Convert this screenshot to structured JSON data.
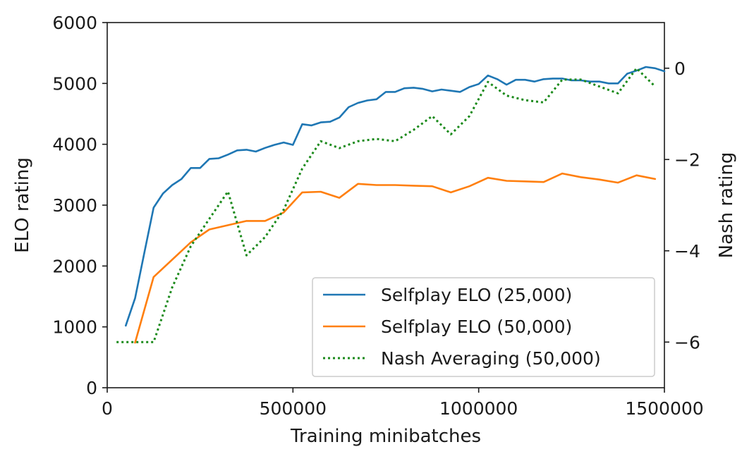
{
  "chart_data": {
    "type": "line",
    "xlabel": "Training minibatches",
    "ylabel": "ELO rating",
    "y2label": "Nash rating",
    "xlim": [
      0,
      1500000
    ],
    "ylim": [
      0,
      6000
    ],
    "y2lim": [
      -7,
      1
    ],
    "x_ticks": [
      0,
      500000,
      1000000,
      1500000
    ],
    "x_tick_labels": [
      "0",
      "500000",
      "1000000",
      "1500000"
    ],
    "y_ticks": [
      0,
      1000,
      2000,
      3000,
      4000,
      5000,
      6000
    ],
    "y_tick_labels": [
      "0",
      "1000",
      "2000",
      "3000",
      "4000",
      "5000",
      "6000"
    ],
    "y2_ticks": [
      0,
      -2,
      -4,
      -6
    ],
    "y2_tick_labels": [
      "0",
      "−2",
      "−4",
      "−6"
    ],
    "grid": false,
    "legend_position": "lower-right",
    "series": [
      {
        "name": "Selfplay ELO (25,000)",
        "axis": "left",
        "style": "solid",
        "color": "#1f77b4",
        "x": [
          50000,
          75000,
          100000,
          125000,
          150000,
          175000,
          200000,
          225000,
          250000,
          275000,
          300000,
          325000,
          350000,
          375000,
          400000,
          425000,
          450000,
          475000,
          500000,
          525000,
          550000,
          575000,
          600000,
          625000,
          650000,
          675000,
          700000,
          725000,
          750000,
          775000,
          800000,
          825000,
          850000,
          875000,
          900000,
          925000,
          950000,
          975000,
          1000000,
          1025000,
          1050000,
          1075000,
          1100000,
          1125000,
          1150000,
          1175000,
          1200000,
          1225000,
          1250000,
          1275000,
          1300000,
          1325000,
          1350000,
          1375000,
          1400000,
          1425000,
          1450000,
          1475000,
          1500000
        ],
        "y": [
          1020,
          1470,
          2220,
          2960,
          3190,
          3330,
          3430,
          3610,
          3610,
          3760,
          3770,
          3830,
          3900,
          3910,
          3880,
          3940,
          3990,
          4030,
          3990,
          4330,
          4310,
          4360,
          4370,
          4440,
          4610,
          4680,
          4720,
          4740,
          4860,
          4860,
          4920,
          4930,
          4910,
          4870,
          4900,
          4880,
          4860,
          4940,
          4990,
          5130,
          5070,
          4980,
          5060,
          5060,
          5030,
          5070,
          5080,
          5080,
          5050,
          5050,
          5030,
          5030,
          5000,
          5000,
          5160,
          5210,
          5270,
          5250,
          5200
        ]
      },
      {
        "name": "Selfplay ELO (50,000)",
        "axis": "left",
        "style": "solid",
        "color": "#ff7f0e",
        "x": [
          75000,
          125000,
          225000,
          275000,
          375000,
          425000,
          475000,
          525000,
          575000,
          625000,
          675000,
          725000,
          775000,
          825000,
          875000,
          925000,
          975000,
          1025000,
          1075000,
          1125000,
          1175000,
          1225000,
          1275000,
          1325000,
          1375000,
          1425000,
          1475000
        ],
        "y": [
          740,
          1820,
          2390,
          2600,
          2740,
          2740,
          2880,
          3210,
          3220,
          3120,
          3350,
          3330,
          3330,
          3320,
          3310,
          3210,
          3310,
          3450,
          3400,
          3390,
          3380,
          3520,
          3460,
          3420,
          3370,
          3490,
          3430
        ]
      },
      {
        "name": "Nash Averaging (50,000)",
        "axis": "right",
        "style": "dotted",
        "color": "#1b8a1b",
        "x": [
          25000,
          75000,
          125000,
          175000,
          225000,
          275000,
          325000,
          375000,
          425000,
          475000,
          525000,
          575000,
          625000,
          675000,
          725000,
          775000,
          825000,
          875000,
          925000,
          975000,
          1025000,
          1075000,
          1125000,
          1175000,
          1225000,
          1275000,
          1325000,
          1375000,
          1425000,
          1475000
        ],
        "y": [
          -6.0,
          -6.0,
          -6.0,
          -4.8,
          -3.9,
          -3.3,
          -2.7,
          -4.1,
          -3.7,
          -3.1,
          -2.2,
          -1.6,
          -1.75,
          -1.6,
          -1.55,
          -1.6,
          -1.35,
          -1.05,
          -1.45,
          -1.05,
          -0.3,
          -0.6,
          -0.7,
          -0.75,
          -0.25,
          -0.25,
          -0.4,
          -0.55,
          0.0,
          -0.4
        ]
      }
    ]
  }
}
